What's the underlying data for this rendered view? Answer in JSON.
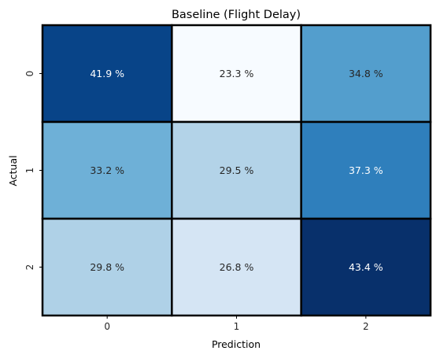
{
  "chart_data": {
    "type": "heatmap",
    "title": "Baseline (Flight Delay)",
    "xlabel": "Prediction",
    "ylabel": "Actual",
    "x_categories": [
      "0",
      "1",
      "2"
    ],
    "y_categories": [
      "0",
      "1",
      "2"
    ],
    "values": [
      [
        41.9,
        23.3,
        34.8
      ],
      [
        33.2,
        29.5,
        37.3
      ],
      [
        29.8,
        26.8,
        43.4
      ]
    ],
    "cell_labels": [
      [
        "41.9 %",
        "23.3 %",
        "34.8 %"
      ],
      [
        "33.2 %",
        "29.5 %",
        "37.3 %"
      ],
      [
        "29.8 %",
        "26.8 %",
        "43.4 %"
      ]
    ],
    "colormap": "Blues",
    "colorbar": false,
    "cell_border_color": "#000000"
  }
}
